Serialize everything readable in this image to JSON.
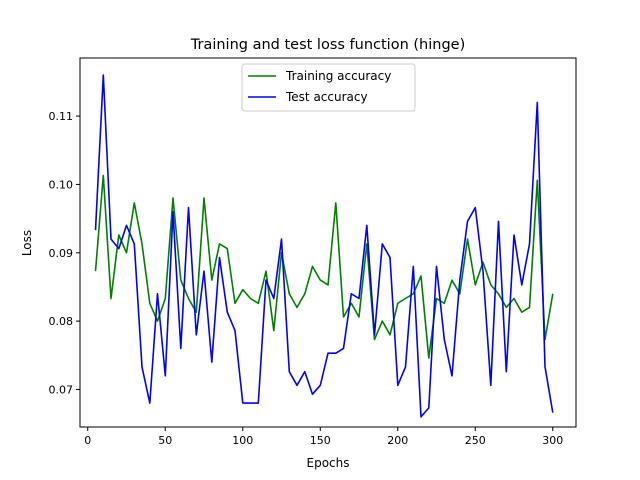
{
  "chart_data": {
    "type": "line",
    "title": "Training and test loss function (hinge)",
    "xlabel": "Epochs",
    "ylabel": "Loss",
    "xlim": [
      -5,
      315
    ],
    "ylim": [
      0.0645,
      0.1185
    ],
    "x_ticks": [
      0,
      50,
      100,
      150,
      200,
      250,
      300
    ],
    "y_ticks": [
      0.07,
      0.08,
      0.09,
      0.1,
      0.11
    ],
    "y_tick_labels": [
      "0.07",
      "0.08",
      "0.09",
      "0.10",
      "0.11"
    ],
    "grid": false,
    "legend_position": "top-center",
    "x": [
      5,
      10,
      15,
      20,
      25,
      30,
      35,
      40,
      45,
      50,
      55,
      60,
      65,
      70,
      75,
      80,
      85,
      90,
      95,
      100,
      105,
      110,
      115,
      120,
      125,
      130,
      135,
      140,
      145,
      150,
      155,
      160,
      165,
      170,
      175,
      180,
      185,
      190,
      195,
      200,
      205,
      210,
      215,
      220,
      225,
      230,
      235,
      240,
      245,
      250,
      255,
      260,
      265,
      270,
      275,
      280,
      285,
      290,
      295,
      300
    ],
    "series": [
      {
        "name": "Training accuracy",
        "color": "#008000",
        "values": [
          0.0873,
          0.1013,
          0.0833,
          0.0926,
          0.09,
          0.0973,
          0.0913,
          0.0826,
          0.08,
          0.0833,
          0.098,
          0.086,
          0.0833,
          0.0813,
          0.098,
          0.086,
          0.0913,
          0.0906,
          0.0826,
          0.0846,
          0.0833,
          0.0826,
          0.0873,
          0.0786,
          0.09,
          0.084,
          0.082,
          0.084,
          0.088,
          0.086,
          0.0853,
          0.0973,
          0.0806,
          0.0826,
          0.0806,
          0.0913,
          0.0773,
          0.08,
          0.078,
          0.0826,
          0.0833,
          0.084,
          0.0866,
          0.0746,
          0.0833,
          0.0826,
          0.086,
          0.084,
          0.092,
          0.0853,
          0.0886,
          0.0853,
          0.084,
          0.082,
          0.0833,
          0.0813,
          0.082,
          0.1006,
          0.0773,
          0.084
        ]
      },
      {
        "name": "Test accuracy",
        "color": "#0000ff",
        "values": [
          0.0933,
          0.116,
          0.092,
          0.0906,
          0.094,
          0.0913,
          0.0733,
          0.068,
          0.084,
          0.072,
          0.096,
          0.076,
          0.0966,
          0.078,
          0.0873,
          0.074,
          0.0893,
          0.0813,
          0.0786,
          0.068,
          0.068,
          0.068,
          0.086,
          0.0833,
          0.092,
          0.0726,
          0.0706,
          0.0726,
          0.0693,
          0.0706,
          0.0753,
          0.0753,
          0.076,
          0.084,
          0.0833,
          0.094,
          0.078,
          0.0913,
          0.0893,
          0.0706,
          0.0733,
          0.088,
          0.066,
          0.0673,
          0.088,
          0.0773,
          0.072,
          0.086,
          0.0946,
          0.0966,
          0.0873,
          0.0706,
          0.0946,
          0.0726,
          0.0926,
          0.0853,
          0.0913,
          0.112,
          0.0733,
          0.0666
        ]
      }
    ]
  }
}
